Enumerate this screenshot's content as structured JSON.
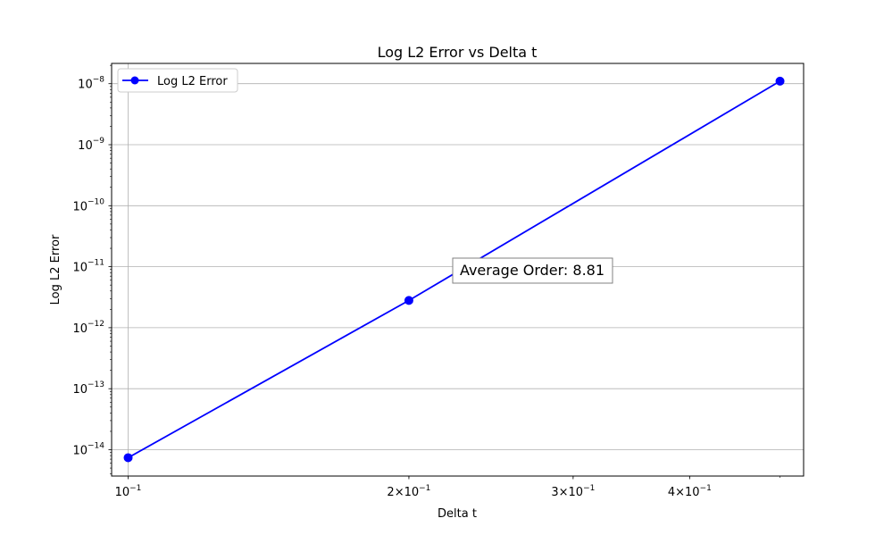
{
  "chart_data": {
    "type": "line",
    "title": "Log L2 Error vs Delta t",
    "xlabel": "Delta t",
    "ylabel": "Log L2 Error",
    "xscale": "log",
    "yscale": "log",
    "xlim": [
      0.096,
      0.53
    ],
    "ylim": [
      3.7e-15,
      2.15e-08
    ],
    "grid": true,
    "legend_position": "top-left",
    "x_ticks": [
      {
        "value": 0.1,
        "base": "10",
        "mant": "",
        "exp": "−1"
      },
      {
        "value": 0.2,
        "base": "10",
        "mant": "2×",
        "exp": "−1"
      },
      {
        "value": 0.3,
        "base": "10",
        "mant": "3×",
        "exp": "−1"
      },
      {
        "value": 0.4,
        "base": "10",
        "mant": "4×",
        "exp": "−1"
      }
    ],
    "y_ticks": [
      {
        "value": 1e-14,
        "base": "10",
        "exp": "−14"
      },
      {
        "value": 1e-13,
        "base": "10",
        "exp": "−13"
      },
      {
        "value": 1e-12,
        "base": "10",
        "exp": "−12"
      },
      {
        "value": 1e-11,
        "base": "10",
        "exp": "−11"
      },
      {
        "value": 1e-10,
        "base": "10",
        "exp": "−10"
      },
      {
        "value": 1e-09,
        "base": "10",
        "exp": "−9"
      },
      {
        "value": 1e-08,
        "base": "10",
        "exp": "−8"
      }
    ],
    "series": [
      {
        "name": "Log L2 Error",
        "color": "#0000ff",
        "marker": "circle",
        "x": [
          0.1,
          0.2,
          0.5
        ],
        "y": [
          7.4e-15,
          2.8e-12,
          1.1e-08
        ]
      }
    ],
    "annotations": [
      {
        "text": "Average Order: 8.81",
        "x": 0.224,
        "y": 8.8e-12
      }
    ]
  }
}
